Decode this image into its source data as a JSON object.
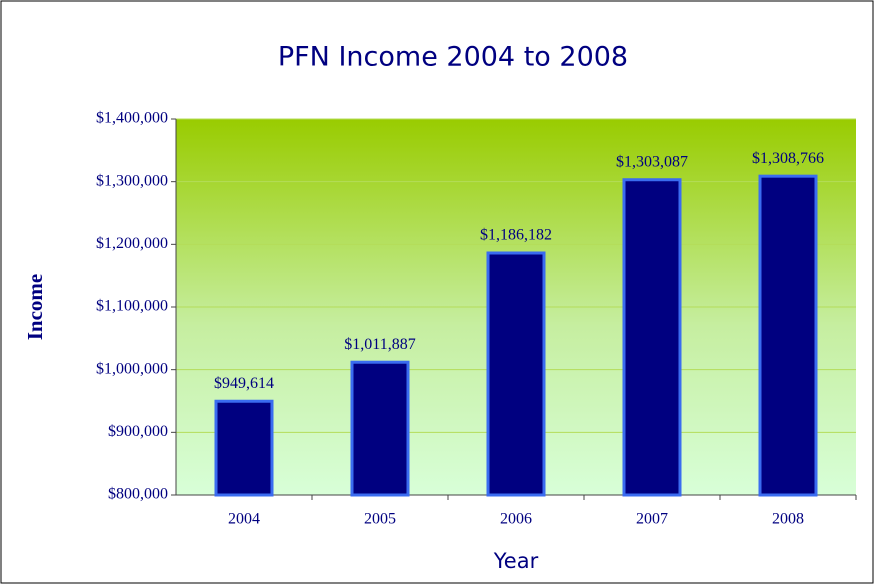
{
  "chart_data": {
    "type": "bar",
    "title": "PFN Income 2004 to 2008",
    "x_label": "Year",
    "y_label": "Income",
    "categories": [
      "2004",
      "2005",
      "2006",
      "2007",
      "2008"
    ],
    "values": [
      949614,
      1011887,
      1186182,
      1303087,
      1308766
    ],
    "value_labels": [
      "$949,614",
      "$1,011,887",
      "$1,186,182",
      "$1,303,087",
      "$1,308,766"
    ],
    "color": "#000080",
    "ylim": [
      800000,
      1400000
    ],
    "yticks": [
      {
        "value": 800000,
        "label": "$800,000"
      },
      {
        "value": 900000,
        "label": "$900,000"
      },
      {
        "value": 1000000,
        "label": "$1,000,000"
      },
      {
        "value": 1100000,
        "label": "$1,100,000"
      },
      {
        "value": 1200000,
        "label": "$1,200,000"
      },
      {
        "value": 1300000,
        "label": "$1,300,000"
      },
      {
        "value": 1400000,
        "label": "$1,400,000"
      }
    ],
    "grid": true
  }
}
